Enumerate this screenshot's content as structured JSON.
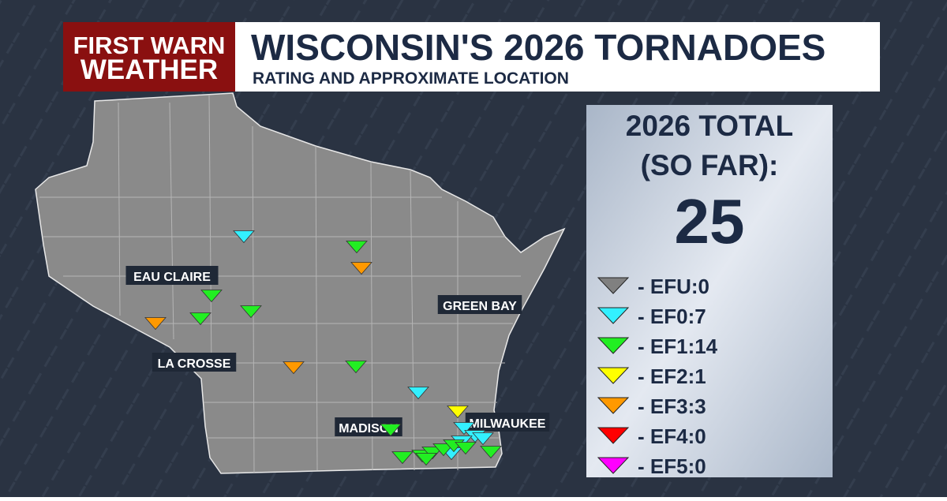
{
  "header": {
    "logo": [
      "FIRST WARN",
      "WEATHER"
    ],
    "title": "WISCONSIN'S 2026 TORNADOES",
    "subtitle": "RATING AND APPROXIMATE LOCATION"
  },
  "total": {
    "label": [
      "2026 TOTAL",
      "(SO FAR):"
    ],
    "value": "25"
  },
  "legend": {
    "items": [
      {
        "label": "- EFU:0",
        "color": "#808080"
      },
      {
        "label": "- EF0:7",
        "color": "#33f0ff"
      },
      {
        "label": "- EF1:14",
        "color": "#22ee22"
      },
      {
        "label": "- EF2:1",
        "color": "#ffff00"
      },
      {
        "label": "- EF3:3",
        "color": "#ff9900"
      },
      {
        "label": "- EF4:0",
        "color": "#ff0000"
      },
      {
        "label": "- EF5:0",
        "color": "#ff00ff"
      }
    ]
  },
  "cities": [
    "EAU CLAIRE",
    "GREEN BAY",
    "LA CROSSE",
    "MADISON",
    "MILWAUKEE"
  ]
}
